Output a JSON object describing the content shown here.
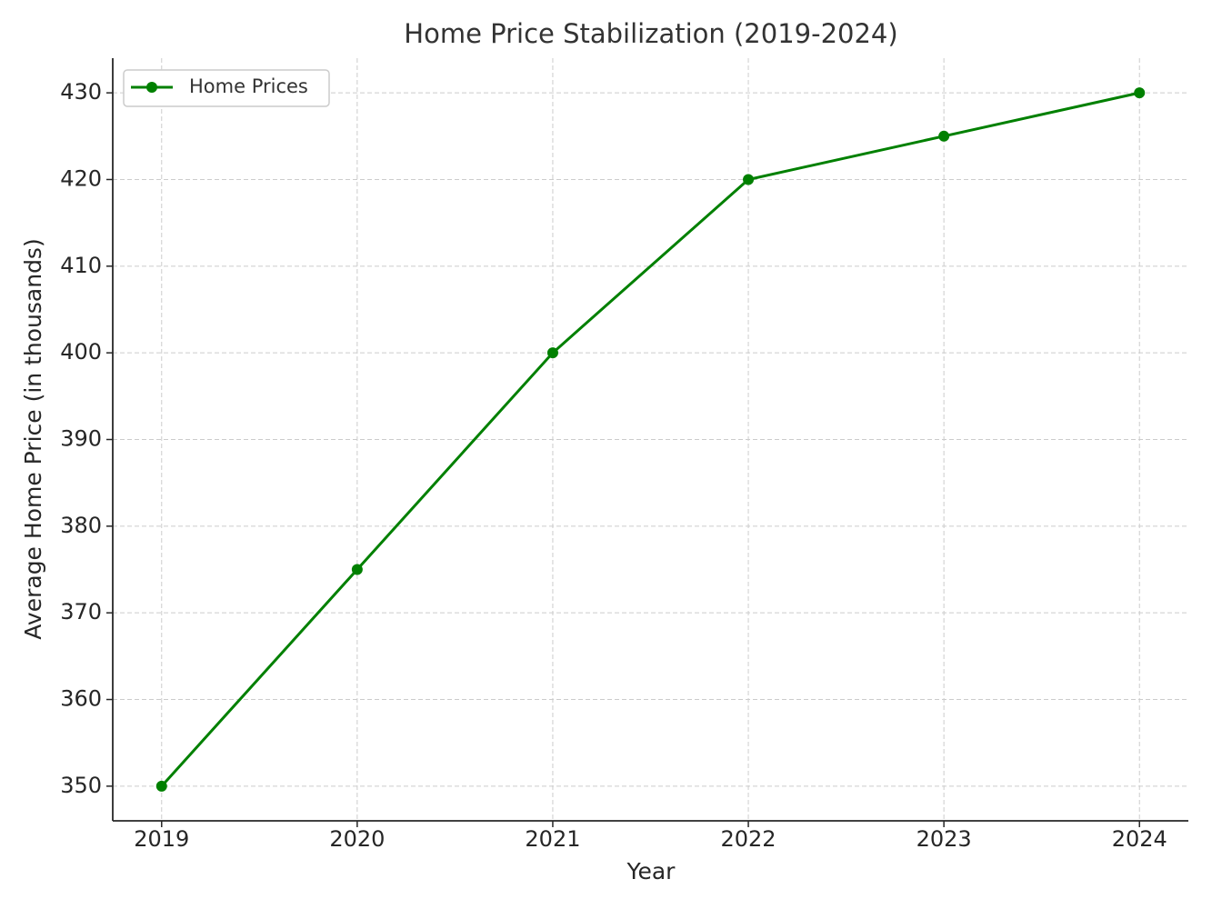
{
  "chart_data": {
    "type": "line",
    "title": "Home Price Stabilization (2019-2024)",
    "x_label": "Year",
    "y_label": "Average Home Price (in thousands)",
    "x": [
      2019,
      2020,
      2021,
      2022,
      2023,
      2024
    ],
    "series": [
      {
        "name": "Home Prices",
        "color": "#008000",
        "values": [
          350,
          375,
          400,
          420,
          425,
          430
        ]
      }
    ],
    "xlim": [
      2018.75,
      2024.25
    ],
    "xticks": [
      2019,
      2020,
      2021,
      2022,
      2023,
      2024
    ],
    "ylim": [
      346,
      434
    ],
    "yticks": [
      350,
      360,
      370,
      380,
      390,
      400,
      410,
      420,
      430
    ],
    "grid": true,
    "legend": "upper-left"
  }
}
